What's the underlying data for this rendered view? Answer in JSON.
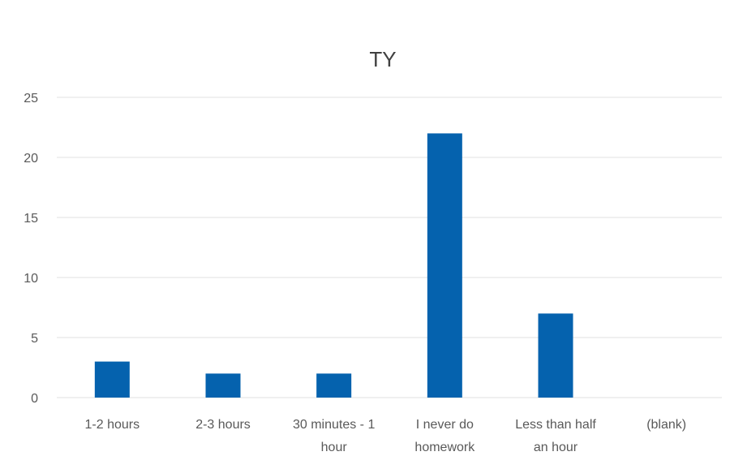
{
  "chart_data": {
    "type": "bar",
    "title": "TY",
    "categories": [
      [
        "1-2 hours"
      ],
      [
        "2-3 hours"
      ],
      [
        "30 minutes - 1",
        "hour"
      ],
      [
        "I never do",
        "homework"
      ],
      [
        "Less than half",
        "an hour"
      ],
      [
        "(blank)"
      ]
    ],
    "values": [
      3,
      2,
      2,
      22,
      7,
      0
    ],
    "ylim": [
      0,
      25
    ],
    "yticks": [
      0,
      5,
      10,
      15,
      20,
      25
    ],
    "grid": true,
    "legend": "none",
    "bar_color": "#0562AE"
  }
}
